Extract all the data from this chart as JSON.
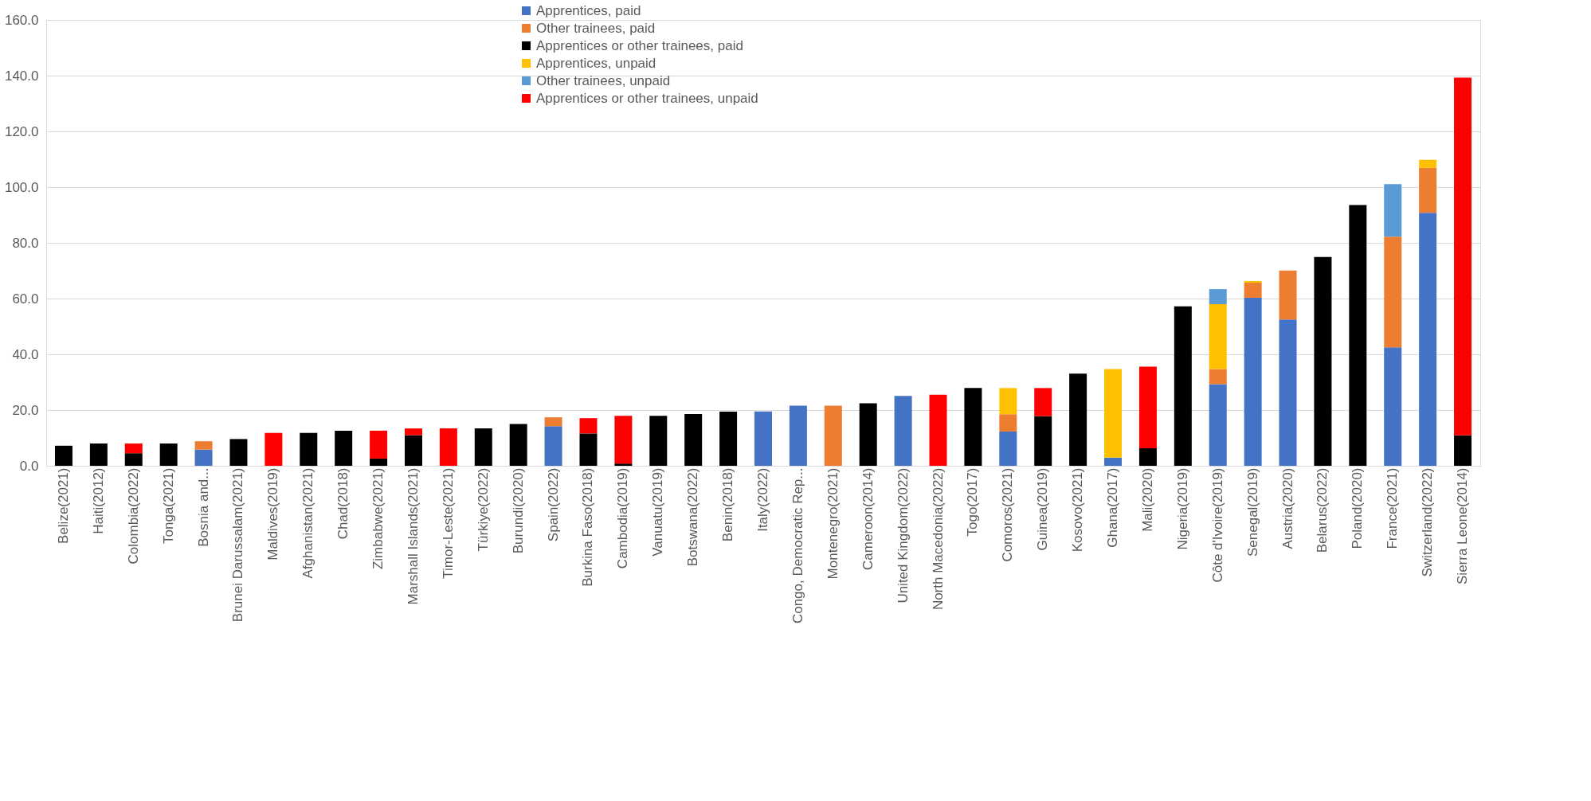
{
  "chart_data": {
    "type": "bar",
    "stacked": true,
    "categories": [
      "Belize(2021)",
      "Haiti(2012)",
      "Colombia(2022)",
      "Tonga(2021)",
      "Bosnia and...",
      "Brunei Darussalam(2021)",
      "Maldives(2019)",
      "Afghanistan(2021)",
      "Chad(2018)",
      "Zimbabwe(2021)",
      "Marshall Islands(2021)",
      "Timor-Leste(2021)",
      "Türkiye(2022)",
      "Burundi(2020)",
      "Spain(2022)",
      "Burkina Faso(2018)",
      "Cambodia(2019)",
      "Vanuatu(2019)",
      "Botswana(2022)",
      "Benin(2018)",
      "Italy(2022)",
      "Congo, Democratic Rep...",
      "Montenegro(2021)",
      "Cameroon(2014)",
      "United Kingdom(2022)",
      "North Macedonia(2022)",
      "Togo(2017)",
      "Comoros(2021)",
      "Guinea(2019)",
      "Kosovo(2021)",
      "Ghana(2017)",
      "Mali(2020)",
      "Nigeria(2019)",
      "Côte d'Ivoire(2019)",
      "Senegal(2019)",
      "Austria(2020)",
      "Belarus(2022)",
      "Poland(2020)",
      "France(2021)",
      "Switzerland(2022)",
      "Sierra Leone(2014)"
    ],
    "series": [
      {
        "name": "Apprentices, paid",
        "color": "#4472c4",
        "values": [
          null,
          null,
          null,
          null,
          5.8,
          null,
          null,
          null,
          null,
          null,
          null,
          null,
          null,
          null,
          14.2,
          null,
          null,
          null,
          null,
          null,
          19.5,
          21.6,
          null,
          null,
          25.1,
          null,
          null,
          12.3,
          null,
          null,
          2.9,
          null,
          null,
          29.3,
          60.3,
          52.5,
          null,
          null,
          42.5,
          90.8,
          null
        ]
      },
      {
        "name": "Other trainees, paid",
        "color": "#ed7d31",
        "values": [
          null,
          null,
          null,
          null,
          3.0,
          null,
          null,
          null,
          null,
          null,
          null,
          null,
          null,
          null,
          3.2,
          null,
          null,
          null,
          null,
          null,
          null,
          null,
          21.6,
          null,
          null,
          null,
          null,
          6.2,
          null,
          null,
          null,
          null,
          null,
          5.4,
          5.4,
          17.6,
          null,
          null,
          39.7,
          16.1,
          null
        ]
      },
      {
        "name": "Apprentices or other trainees, paid",
        "color": "#000000",
        "values": [
          7.2,
          8.0,
          4.5,
          8.0,
          null,
          9.6,
          null,
          11.8,
          12.6,
          2.6,
          11.0,
          null,
          13.4,
          15.0,
          null,
          11.6,
          0.8,
          17.9,
          18.6,
          19.4,
          null,
          null,
          null,
          22.4,
          null,
          null,
          27.9,
          null,
          17.8,
          33.1,
          null,
          6.3,
          57.2,
          null,
          null,
          null,
          74.9,
          93.6,
          null,
          null,
          10.9
        ]
      },
      {
        "name": "Apprentices, unpaid",
        "color": "#ffc000",
        "values": [
          null,
          null,
          null,
          null,
          null,
          null,
          null,
          null,
          null,
          null,
          null,
          null,
          null,
          null,
          null,
          null,
          null,
          null,
          null,
          null,
          null,
          null,
          null,
          null,
          null,
          null,
          null,
          9.4,
          null,
          null,
          31.8,
          null,
          null,
          23.3,
          0.6,
          null,
          null,
          null,
          null,
          2.9,
          null
        ]
      },
      {
        "name": "Other trainees, unpaid",
        "color": "#5b9bd5",
        "values": [
          null,
          null,
          null,
          null,
          null,
          null,
          null,
          null,
          null,
          null,
          null,
          null,
          null,
          null,
          null,
          null,
          null,
          null,
          null,
          null,
          null,
          null,
          null,
          null,
          null,
          null,
          null,
          null,
          null,
          null,
          null,
          null,
          null,
          5.4,
          null,
          null,
          null,
          null,
          18.9,
          null,
          null
        ]
      },
      {
        "name": "Apprentices or other trainees, unpaid",
        "color": "#ff0000",
        "values": [
          null,
          null,
          3.5,
          null,
          null,
          null,
          11.8,
          null,
          null,
          10.0,
          2.4,
          13.4,
          null,
          null,
          null,
          5.5,
          17.1,
          null,
          null,
          null,
          null,
          null,
          null,
          null,
          null,
          25.5,
          null,
          null,
          10.1,
          null,
          null,
          29.3,
          null,
          null,
          null,
          null,
          null,
          null,
          null,
          null,
          128.4
        ]
      }
    ],
    "ylim": [
      0,
      160
    ],
    "yticks": [
      {
        "value": 0,
        "label": "0.0"
      },
      {
        "value": 20,
        "label": "20.0"
      },
      {
        "value": 40,
        "label": "40.0"
      },
      {
        "value": 60,
        "label": "60.0"
      },
      {
        "value": 80,
        "label": "80.0"
      },
      {
        "value": 100,
        "label": "100.0"
      },
      {
        "value": 120,
        "label": "120.0"
      },
      {
        "value": 140,
        "label": "140.0"
      },
      {
        "value": 160,
        "label": "160.0"
      }
    ],
    "grid": "y",
    "legend": "top"
  }
}
